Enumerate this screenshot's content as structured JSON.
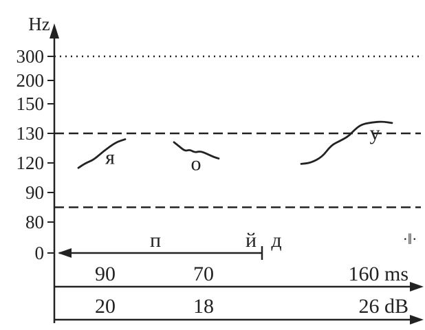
{
  "chart_data": {
    "type": "line",
    "title": "",
    "y_unit_label": "Hz",
    "y_ticks": [
      "300",
      "200",
      "150",
      "130",
      "120",
      "90",
      "80",
      "0"
    ],
    "reference_lines": [
      {
        "value": "300",
        "style": "dotted"
      },
      {
        "value": "130",
        "style": "dashed"
      },
      {
        "value": "85",
        "style": "dashed"
      }
    ],
    "syllables": [
      {
        "label": "я",
        "label_y_hz": 122,
        "contour": [
          [
            0,
            115
          ],
          [
            8,
            120
          ],
          [
            16,
            121
          ],
          [
            27,
            124
          ],
          [
            40,
            127
          ],
          [
            50,
            128
          ]
        ]
      },
      {
        "label": "о",
        "label_y_hz": 119.5,
        "contour": [
          [
            0,
            127
          ],
          [
            7,
            125.5
          ],
          [
            14,
            124
          ],
          [
            20,
            124.5
          ],
          [
            26,
            123.5
          ],
          [
            33,
            124
          ],
          [
            42,
            123
          ],
          [
            50,
            122
          ],
          [
            56,
            121.5
          ]
        ]
      },
      {
        "label": "у",
        "label_y_hz": 130.5,
        "contour": [
          [
            0,
            119
          ],
          [
            10,
            120
          ],
          [
            23,
            122
          ],
          [
            33,
            126
          ],
          [
            43,
            127.5
          ],
          [
            52,
            129
          ],
          [
            58,
            132
          ],
          [
            66,
            136
          ],
          [
            78,
            137.5
          ],
          [
            90,
            138
          ],
          [
            100,
            137
          ]
        ]
      }
    ],
    "consonant_labels": [
      "п",
      "й",
      "д"
    ],
    "pause_mark": "·‖·",
    "durations": {
      "values": [
        "90",
        "70",
        "160 ms"
      ]
    },
    "intensities": {
      "values": [
        "20",
        "18",
        "26 dB"
      ]
    }
  }
}
